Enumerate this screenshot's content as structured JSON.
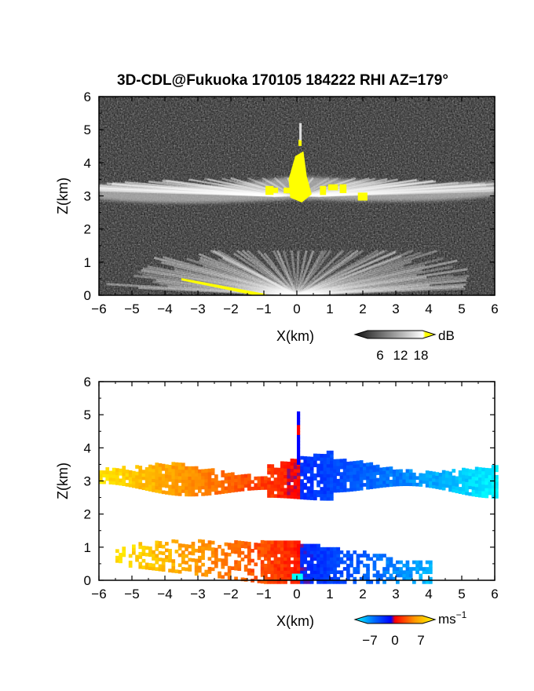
{
  "title": "3D-CDL@Fukuoka 170105 184222 RHI AZ=179°",
  "chart_data": [
    {
      "type": "heatmap",
      "panel": "reflectivity",
      "xlabel": "X(km)",
      "ylabel": "Z(km)",
      "xlim": [
        -6,
        6
      ],
      "ylim": [
        0,
        6
      ],
      "x_ticks": [
        "−6",
        "−5",
        "−4",
        "−3",
        "−2",
        "−1",
        "0",
        "1",
        "2",
        "3",
        "4",
        "5",
        "6"
      ],
      "y_ticks": [
        "0",
        "1",
        "2",
        "3",
        "4",
        "5",
        "6"
      ],
      "colorbar": {
        "unit": "dB",
        "ticks": [
          "6",
          "12",
          "18"
        ],
        "range": [
          0,
          21
        ],
        "colors": [
          "#111111",
          "#ffffff",
          "#ffff00"
        ]
      },
      "features": [
        {
          "name": "cloud layer",
          "x_range": [
            -6,
            6
          ],
          "z_range": [
            2.7,
            3.5
          ],
          "value_db": 12
        },
        {
          "name": "strong echo core",
          "x_range": [
            -0.3,
            0.6
          ],
          "z_range": [
            2.8,
            4.4
          ],
          "value_db": 19
        },
        {
          "name": "low-level fan",
          "x_range": [
            -4.5,
            4.5
          ],
          "z_range": [
            0,
            1.3
          ],
          "value_db": 8
        },
        {
          "name": "surface strong echo",
          "x_range": [
            -3.5,
            -0.8
          ],
          "z_range": [
            0,
            0.5
          ],
          "value_db": 19
        }
      ]
    },
    {
      "type": "heatmap",
      "panel": "doppler velocity",
      "xlabel": "X(km)",
      "ylabel": "Z(km)",
      "xlim": [
        -6,
        6
      ],
      "ylim": [
        0,
        6
      ],
      "x_ticks": [
        "−6",
        "−5",
        "−4",
        "−3",
        "−2",
        "−1",
        "0",
        "1",
        "2",
        "3",
        "4",
        "5",
        "6"
      ],
      "y_ticks": [
        "0",
        "1",
        "2",
        "3",
        "4",
        "5",
        "6"
      ],
      "colorbar": {
        "unit": "ms",
        "unit_exp": "−1",
        "ticks": [
          "−7",
          "0",
          "7"
        ],
        "range": [
          -9,
          9
        ],
        "colors": [
          "#00ffff",
          "#0033ff",
          "#ff0000",
          "#ffff00"
        ]
      },
      "features": [
        {
          "name": "cloud layer",
          "x_range": [
            -6,
            6
          ],
          "z_range": [
            2.7,
            3.5
          ],
          "velocity": "positive for x<0, negative for x>0"
        },
        {
          "name": "low-level fan",
          "x_range": [
            -5.5,
            4.0
          ],
          "z_range": [
            0,
            1.3
          ],
          "velocity": "positive for x<0, negative for x>0"
        }
      ]
    }
  ]
}
